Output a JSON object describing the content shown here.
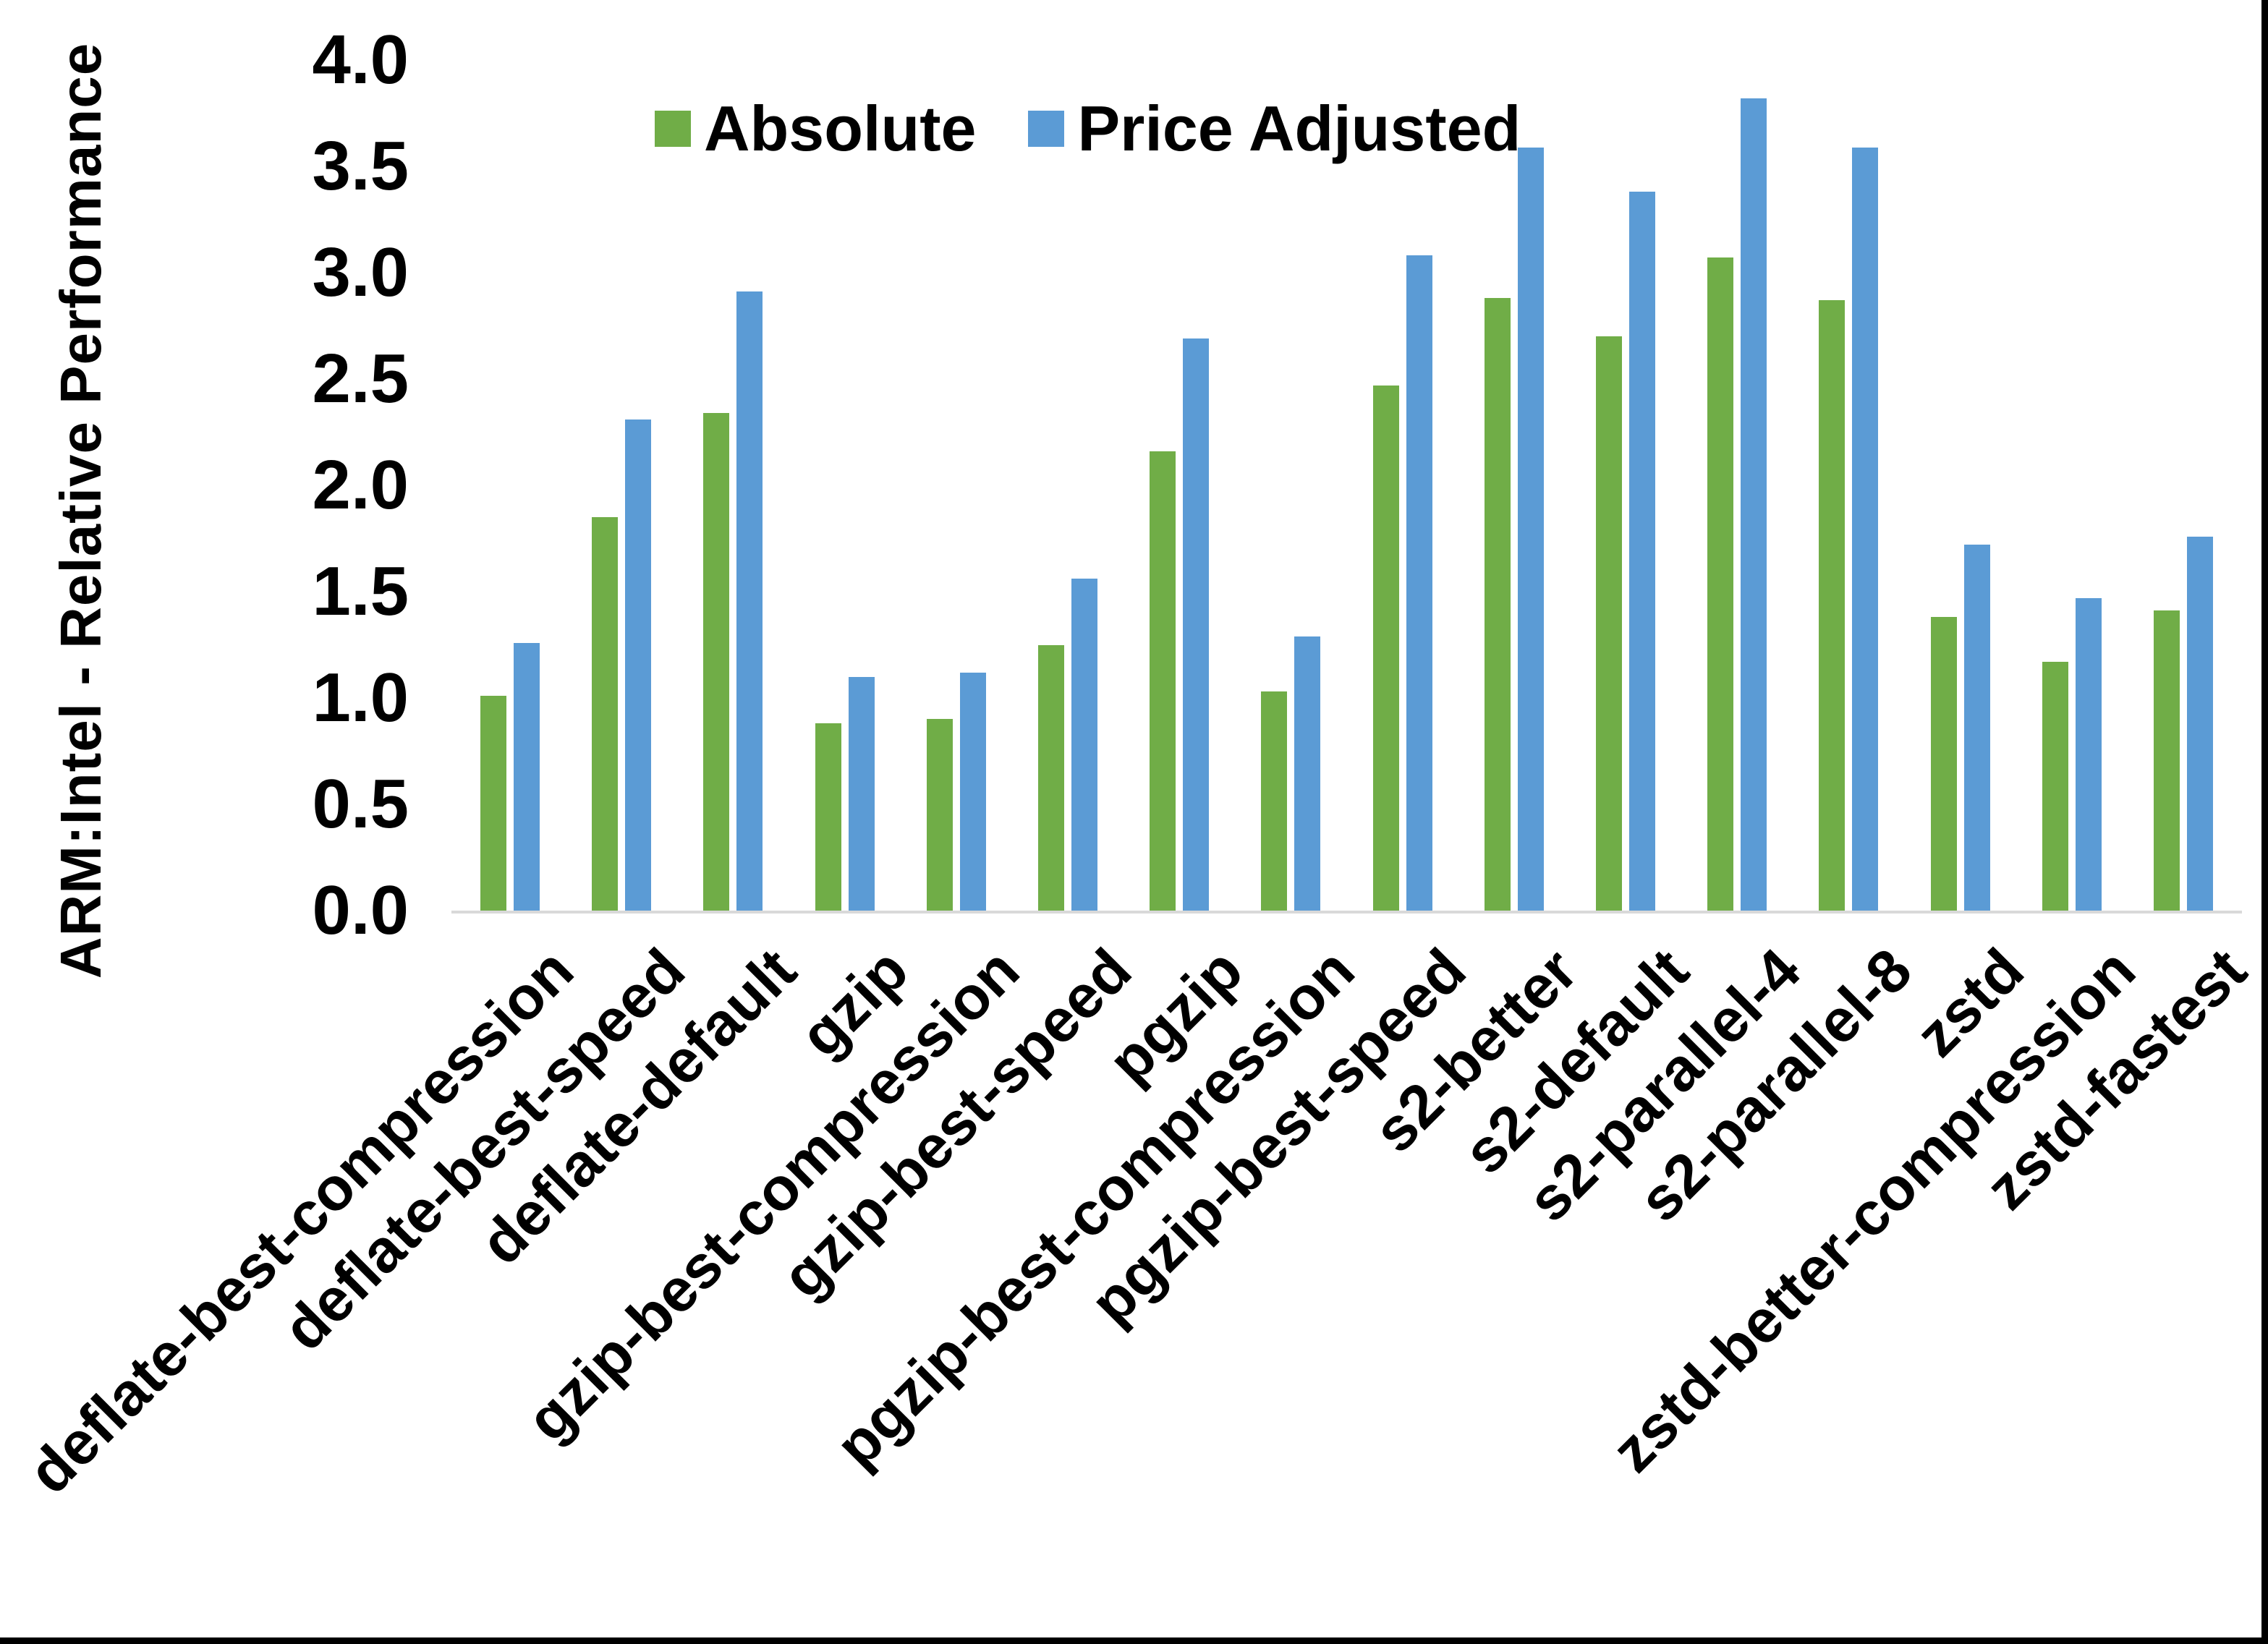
{
  "chart_data": {
    "type": "bar",
    "title": "",
    "ylabel": "ARM:Intel - Relative Performance",
    "xlabel": "",
    "ylim": [
      0,
      4
    ],
    "ytick_step": 0.5,
    "yticks": [
      "0.0",
      "0.5",
      "1.0",
      "1.5",
      "2.0",
      "2.5",
      "3.0",
      "3.5",
      "4.0"
    ],
    "grid": "off",
    "legend_position": "top-center",
    "categories": [
      "deflate-best-compression",
      "deflate-best-speed",
      "deflate-default",
      "gzip",
      "gzip-best-compression",
      "gzip-best-speed",
      "pgzip",
      "pgzip-best-compression",
      "pgzip-best-speed",
      "s2-better",
      "s2-default",
      "s2-parallel-4",
      "s2-parallel-8",
      "zstd",
      "zstd-better-compression",
      "zstd-fastest"
    ],
    "series": [
      {
        "name": "Absolute",
        "color": "#70AD47",
        "values": [
          1.01,
          1.85,
          2.34,
          0.88,
          0.9,
          1.25,
          2.16,
          1.03,
          2.47,
          2.88,
          2.7,
          3.07,
          2.87,
          1.38,
          1.17,
          1.41
        ]
      },
      {
        "name": "Price Adjusted",
        "color": "#5B9BD5",
        "values": [
          1.26,
          2.31,
          2.91,
          1.1,
          1.12,
          1.56,
          2.69,
          1.29,
          3.08,
          3.59,
          3.38,
          3.82,
          3.59,
          1.72,
          1.47,
          1.76
        ]
      }
    ],
    "axis_line_color": "#D9D9D9",
    "text_color": "#000000"
  }
}
